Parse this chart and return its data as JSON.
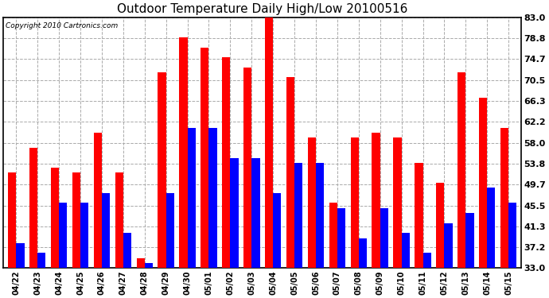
{
  "title": "Outdoor Temperature Daily High/Low 20100516",
  "copyright": "Copyright 2010 Cartronics.com",
  "dates": [
    "04/22",
    "04/23",
    "04/24",
    "04/25",
    "04/26",
    "04/27",
    "04/28",
    "04/29",
    "04/30",
    "05/01",
    "05/02",
    "05/03",
    "05/04",
    "05/05",
    "05/06",
    "05/07",
    "05/08",
    "05/09",
    "05/10",
    "05/11",
    "05/12",
    "05/13",
    "05/14",
    "05/15"
  ],
  "highs": [
    52,
    57,
    53,
    52,
    60,
    52,
    35,
    72,
    79,
    77,
    75,
    73,
    83,
    71,
    59,
    46,
    59,
    60,
    59,
    54,
    50,
    72,
    67,
    61
  ],
  "lows": [
    38,
    36,
    46,
    46,
    48,
    40,
    34,
    48,
    61,
    61,
    55,
    55,
    48,
    54,
    54,
    45,
    39,
    45,
    40,
    36,
    42,
    44,
    49,
    46
  ],
  "high_color": "#ff0000",
  "low_color": "#0000ff",
  "bg_color": "#ffffff",
  "plot_bg_color": "#ffffff",
  "grid_color": "#aaaaaa",
  "yticks": [
    33.0,
    37.2,
    41.3,
    45.5,
    49.7,
    53.8,
    58.0,
    62.2,
    66.3,
    70.5,
    74.7,
    78.8,
    83.0
  ],
  "ylim": [
    33.0,
    83.0
  ],
  "bar_bottom": 33.0,
  "bar_width": 0.38
}
